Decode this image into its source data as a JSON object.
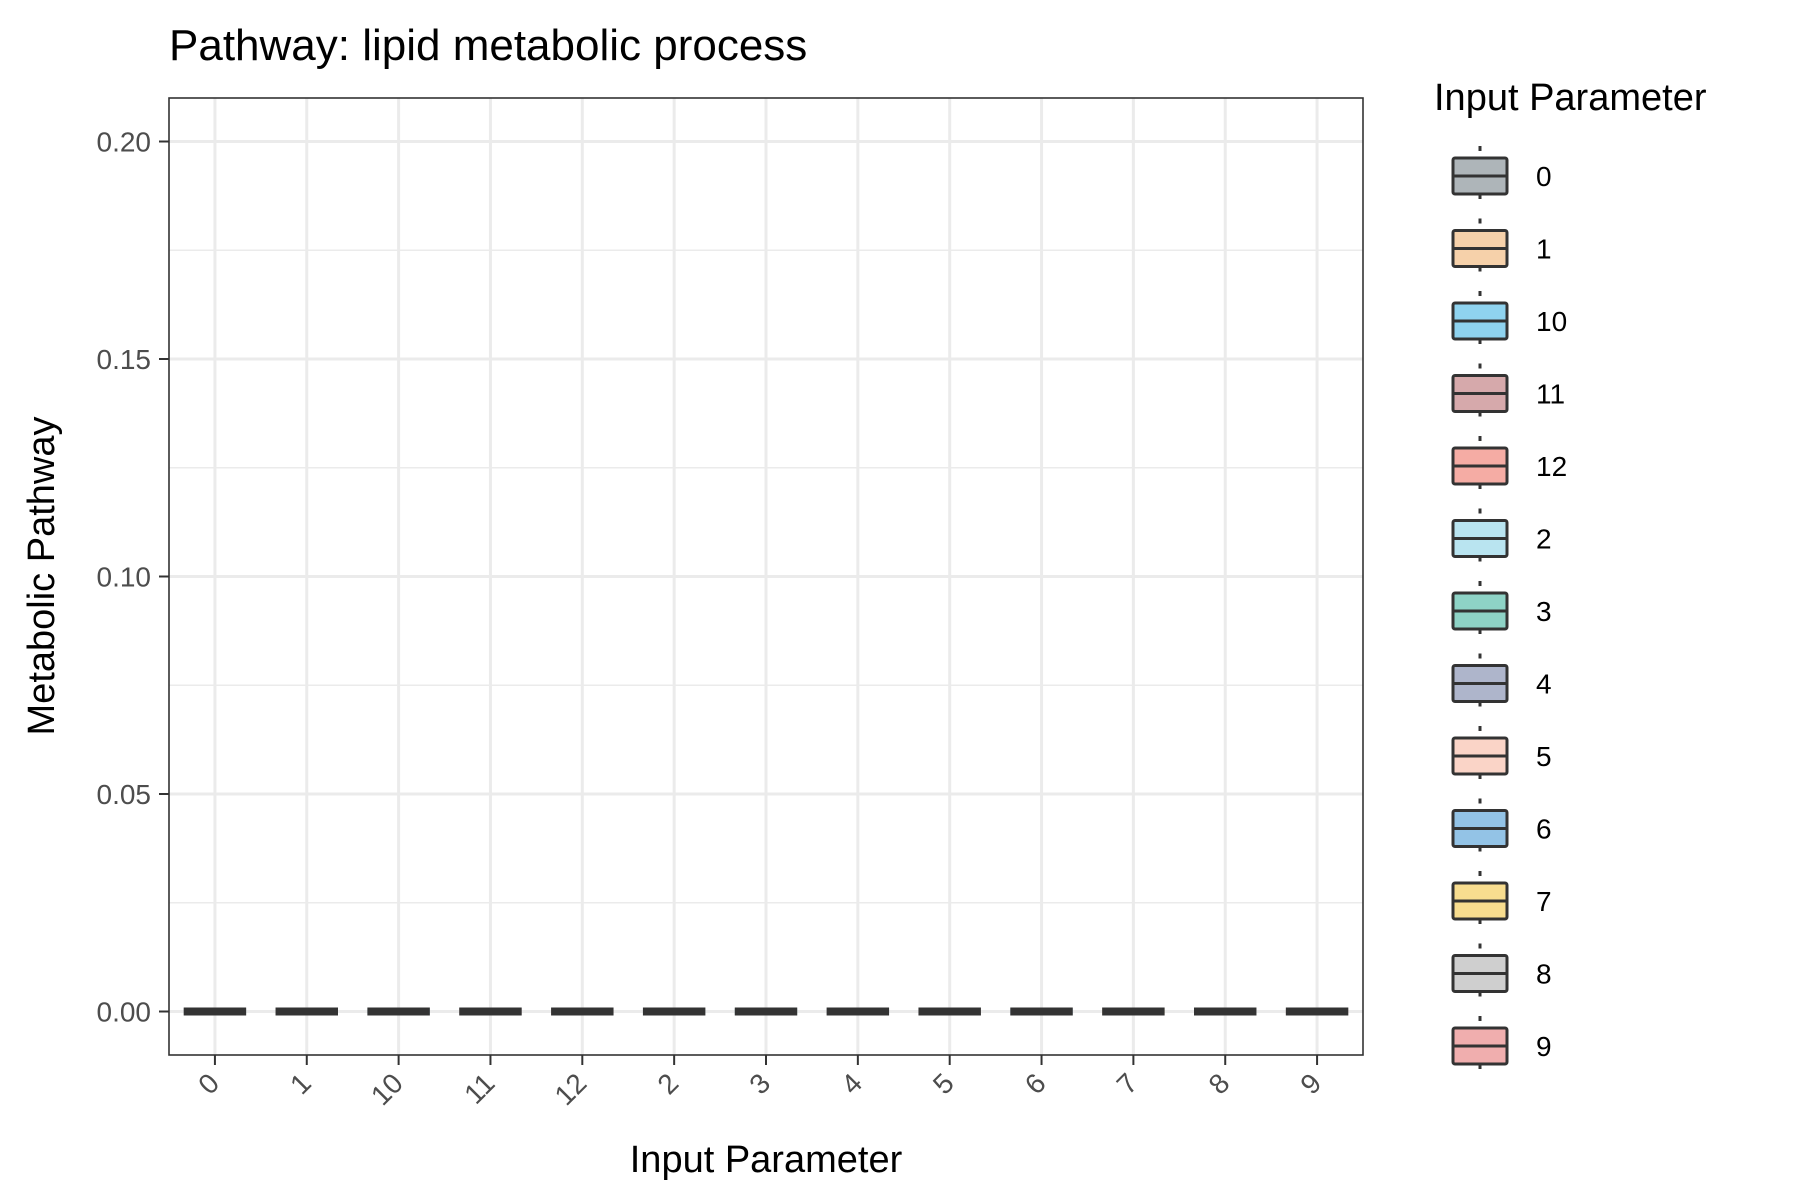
{
  "chart_data": {
    "type": "box",
    "title": "Pathway: lipid metabolic process",
    "xlabel": "Input Parameter",
    "ylabel": "Metabolic Pathway",
    "categories": [
      "0",
      "1",
      "10",
      "11",
      "12",
      "2",
      "3",
      "4",
      "5",
      "6",
      "7",
      "8",
      "9"
    ],
    "values": [
      0,
      0,
      0,
      0,
      0,
      0,
      0,
      0,
      0,
      0,
      0,
      0,
      0
    ],
    "ylim": [
      -0.01,
      0.21
    ],
    "yticks": [
      0.0,
      0.05,
      0.1,
      0.15,
      0.2
    ],
    "ytick_labels": [
      "0.00",
      "0.05",
      "0.10",
      "0.15",
      "0.20"
    ],
    "grid": true,
    "legend": {
      "title": "Input Parameter",
      "placement": "right",
      "items": [
        {
          "label": "0",
          "color": "#aeb5b9"
        },
        {
          "label": "1",
          "color": "#f6d1aa"
        },
        {
          "label": "10",
          "color": "#8fd3ef"
        },
        {
          "label": "11",
          "color": "#d6a9ab"
        },
        {
          "label": "12",
          "color": "#f5aca4"
        },
        {
          "label": "2",
          "color": "#b9e4f0"
        },
        {
          "label": "3",
          "color": "#8ed3c6"
        },
        {
          "label": "4",
          "color": "#aeb5cb"
        },
        {
          "label": "5",
          "color": "#fad4c7"
        },
        {
          "label": "6",
          "color": "#93c3e6"
        },
        {
          "label": "7",
          "color": "#f8dd8f"
        },
        {
          "label": "8",
          "color": "#cfcfcf"
        },
        {
          "label": "9",
          "color": "#f0aeae"
        }
      ]
    }
  }
}
